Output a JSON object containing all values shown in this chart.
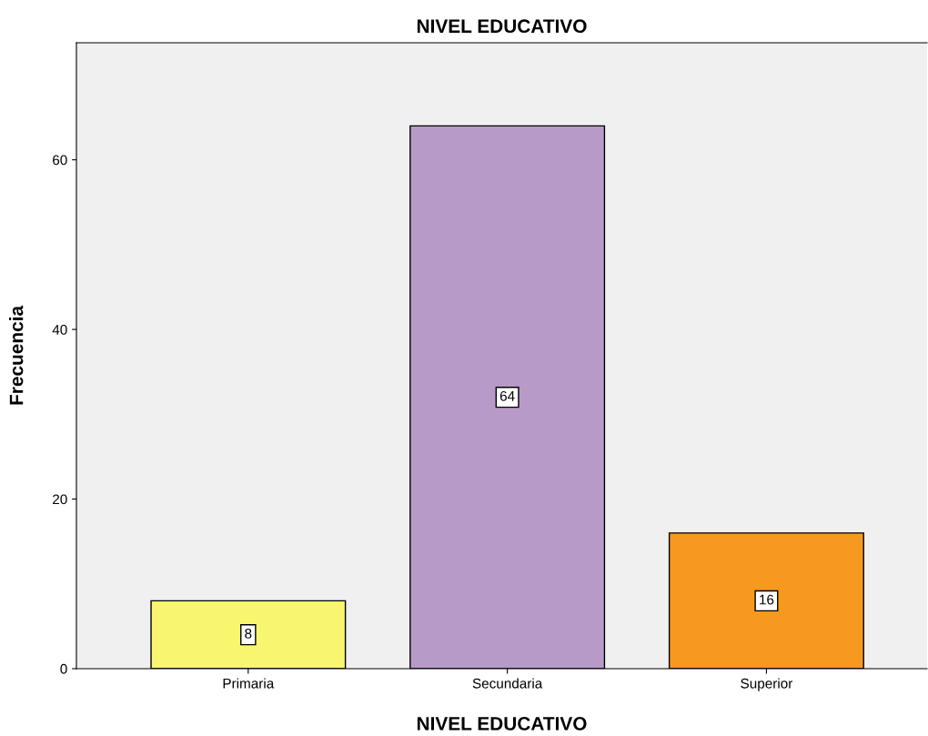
{
  "chart_data": {
    "type": "bar",
    "title": "NIVEL EDUCATIVO",
    "xlabel": "NIVEL EDUCATIVO",
    "ylabel": "Frecuencia",
    "categories": [
      "Primaria",
      "Secundaria",
      "Superior"
    ],
    "values": [
      8,
      64,
      16
    ],
    "colors": [
      "#f8f66f",
      "#b89ac8",
      "#f7991e"
    ],
    "ylim": [
      0,
      73.8
    ],
    "yticks": [
      0,
      20,
      40,
      60
    ],
    "grid": false,
    "data_labels": true
  }
}
